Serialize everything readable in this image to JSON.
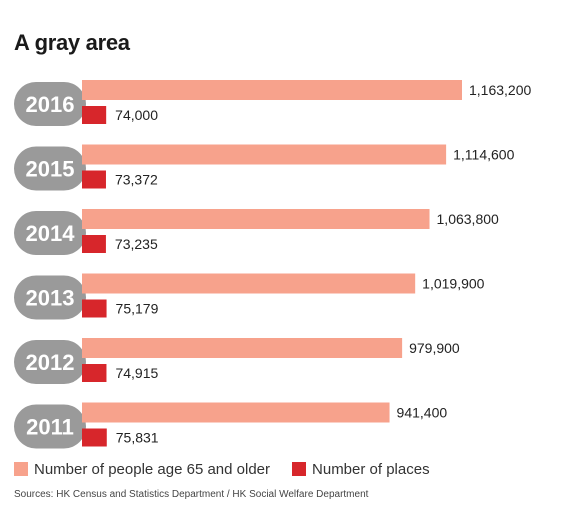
{
  "title": "A gray area",
  "legend": {
    "people_label": "Number of people age 65 and older",
    "places_label": "Number of places"
  },
  "source": "Sources: HK Census and Statistics Department / HK Social Welfare Department",
  "chart_data": {
    "type": "bar",
    "orientation": "horizontal",
    "categories": [
      "2016",
      "2015",
      "2014",
      "2013",
      "2012",
      "2011"
    ],
    "series": [
      {
        "name": "Number of people age 65 and older",
        "color": "#f7a28c",
        "values": [
          1163200,
          1114600,
          1063800,
          1019900,
          979900,
          941400
        ],
        "labels": [
          "1,163,200",
          "1,114,600",
          "1,063,800",
          "1,019,900",
          "979,900",
          "941,400"
        ]
      },
      {
        "name": "Number of places",
        "color": "#d7262b",
        "values": [
          74000,
          73372,
          73235,
          75179,
          74915,
          75831
        ],
        "labels": [
          "74,000",
          "73,372",
          "73,235",
          "75,179",
          "74,915",
          "75,831"
        ]
      }
    ],
    "category_label_color": "#9a9a9a",
    "grid": false,
    "legend_position": "bottom"
  }
}
